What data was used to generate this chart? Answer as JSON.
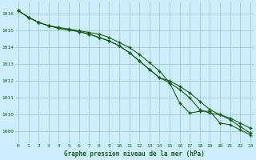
{
  "title": "Graphe pression niveau de la mer (hPa)",
  "bg_color": "#cceeff",
  "grid_color": "#aacccc",
  "line_color": "#1a5c1a",
  "x_ticks": [
    0,
    1,
    2,
    3,
    4,
    5,
    6,
    7,
    8,
    9,
    10,
    11,
    12,
    13,
    14,
    15,
    16,
    17,
    18,
    19,
    20,
    21,
    22,
    23
  ],
  "y_ticks": [
    1009,
    1010,
    1011,
    1012,
    1013,
    1014,
    1015,
    1016
  ],
  "ylim": [
    1008.3,
    1016.7
  ],
  "xlim": [
    -0.3,
    23.3
  ],
  "series1": [
    1016.2,
    1015.8,
    1015.5,
    1015.3,
    1015.2,
    1015.1,
    1015.0,
    1014.9,
    1014.8,
    1014.6,
    1014.3,
    1014.0,
    1013.6,
    1013.1,
    1012.6,
    1011.9,
    1010.7,
    1010.1,
    1010.2,
    1010.2,
    1009.5,
    1009.4,
    1009.1,
    1008.8
  ],
  "series2": [
    1016.2,
    1015.8,
    1015.5,
    1015.3,
    1015.15,
    1015.05,
    1014.95,
    1014.8,
    1014.6,
    1014.4,
    1014.1,
    1013.7,
    1013.2,
    1012.7,
    1012.2,
    1011.9,
    1011.5,
    1011.0,
    1010.3,
    1010.1,
    1010.0,
    1009.8,
    1009.5,
    1009.2
  ],
  "series3": [
    1016.2,
    1015.8,
    1015.5,
    1015.3,
    1015.15,
    1015.05,
    1014.95,
    1014.8,
    1014.6,
    1014.4,
    1014.1,
    1013.7,
    1013.2,
    1012.7,
    1012.2,
    1012.0,
    1011.7,
    1011.3,
    1010.8,
    1010.3,
    1010.0,
    1009.7,
    1009.3,
    1008.9
  ],
  "tick_fontsize": 4.5,
  "label_fontsize": 5.5
}
